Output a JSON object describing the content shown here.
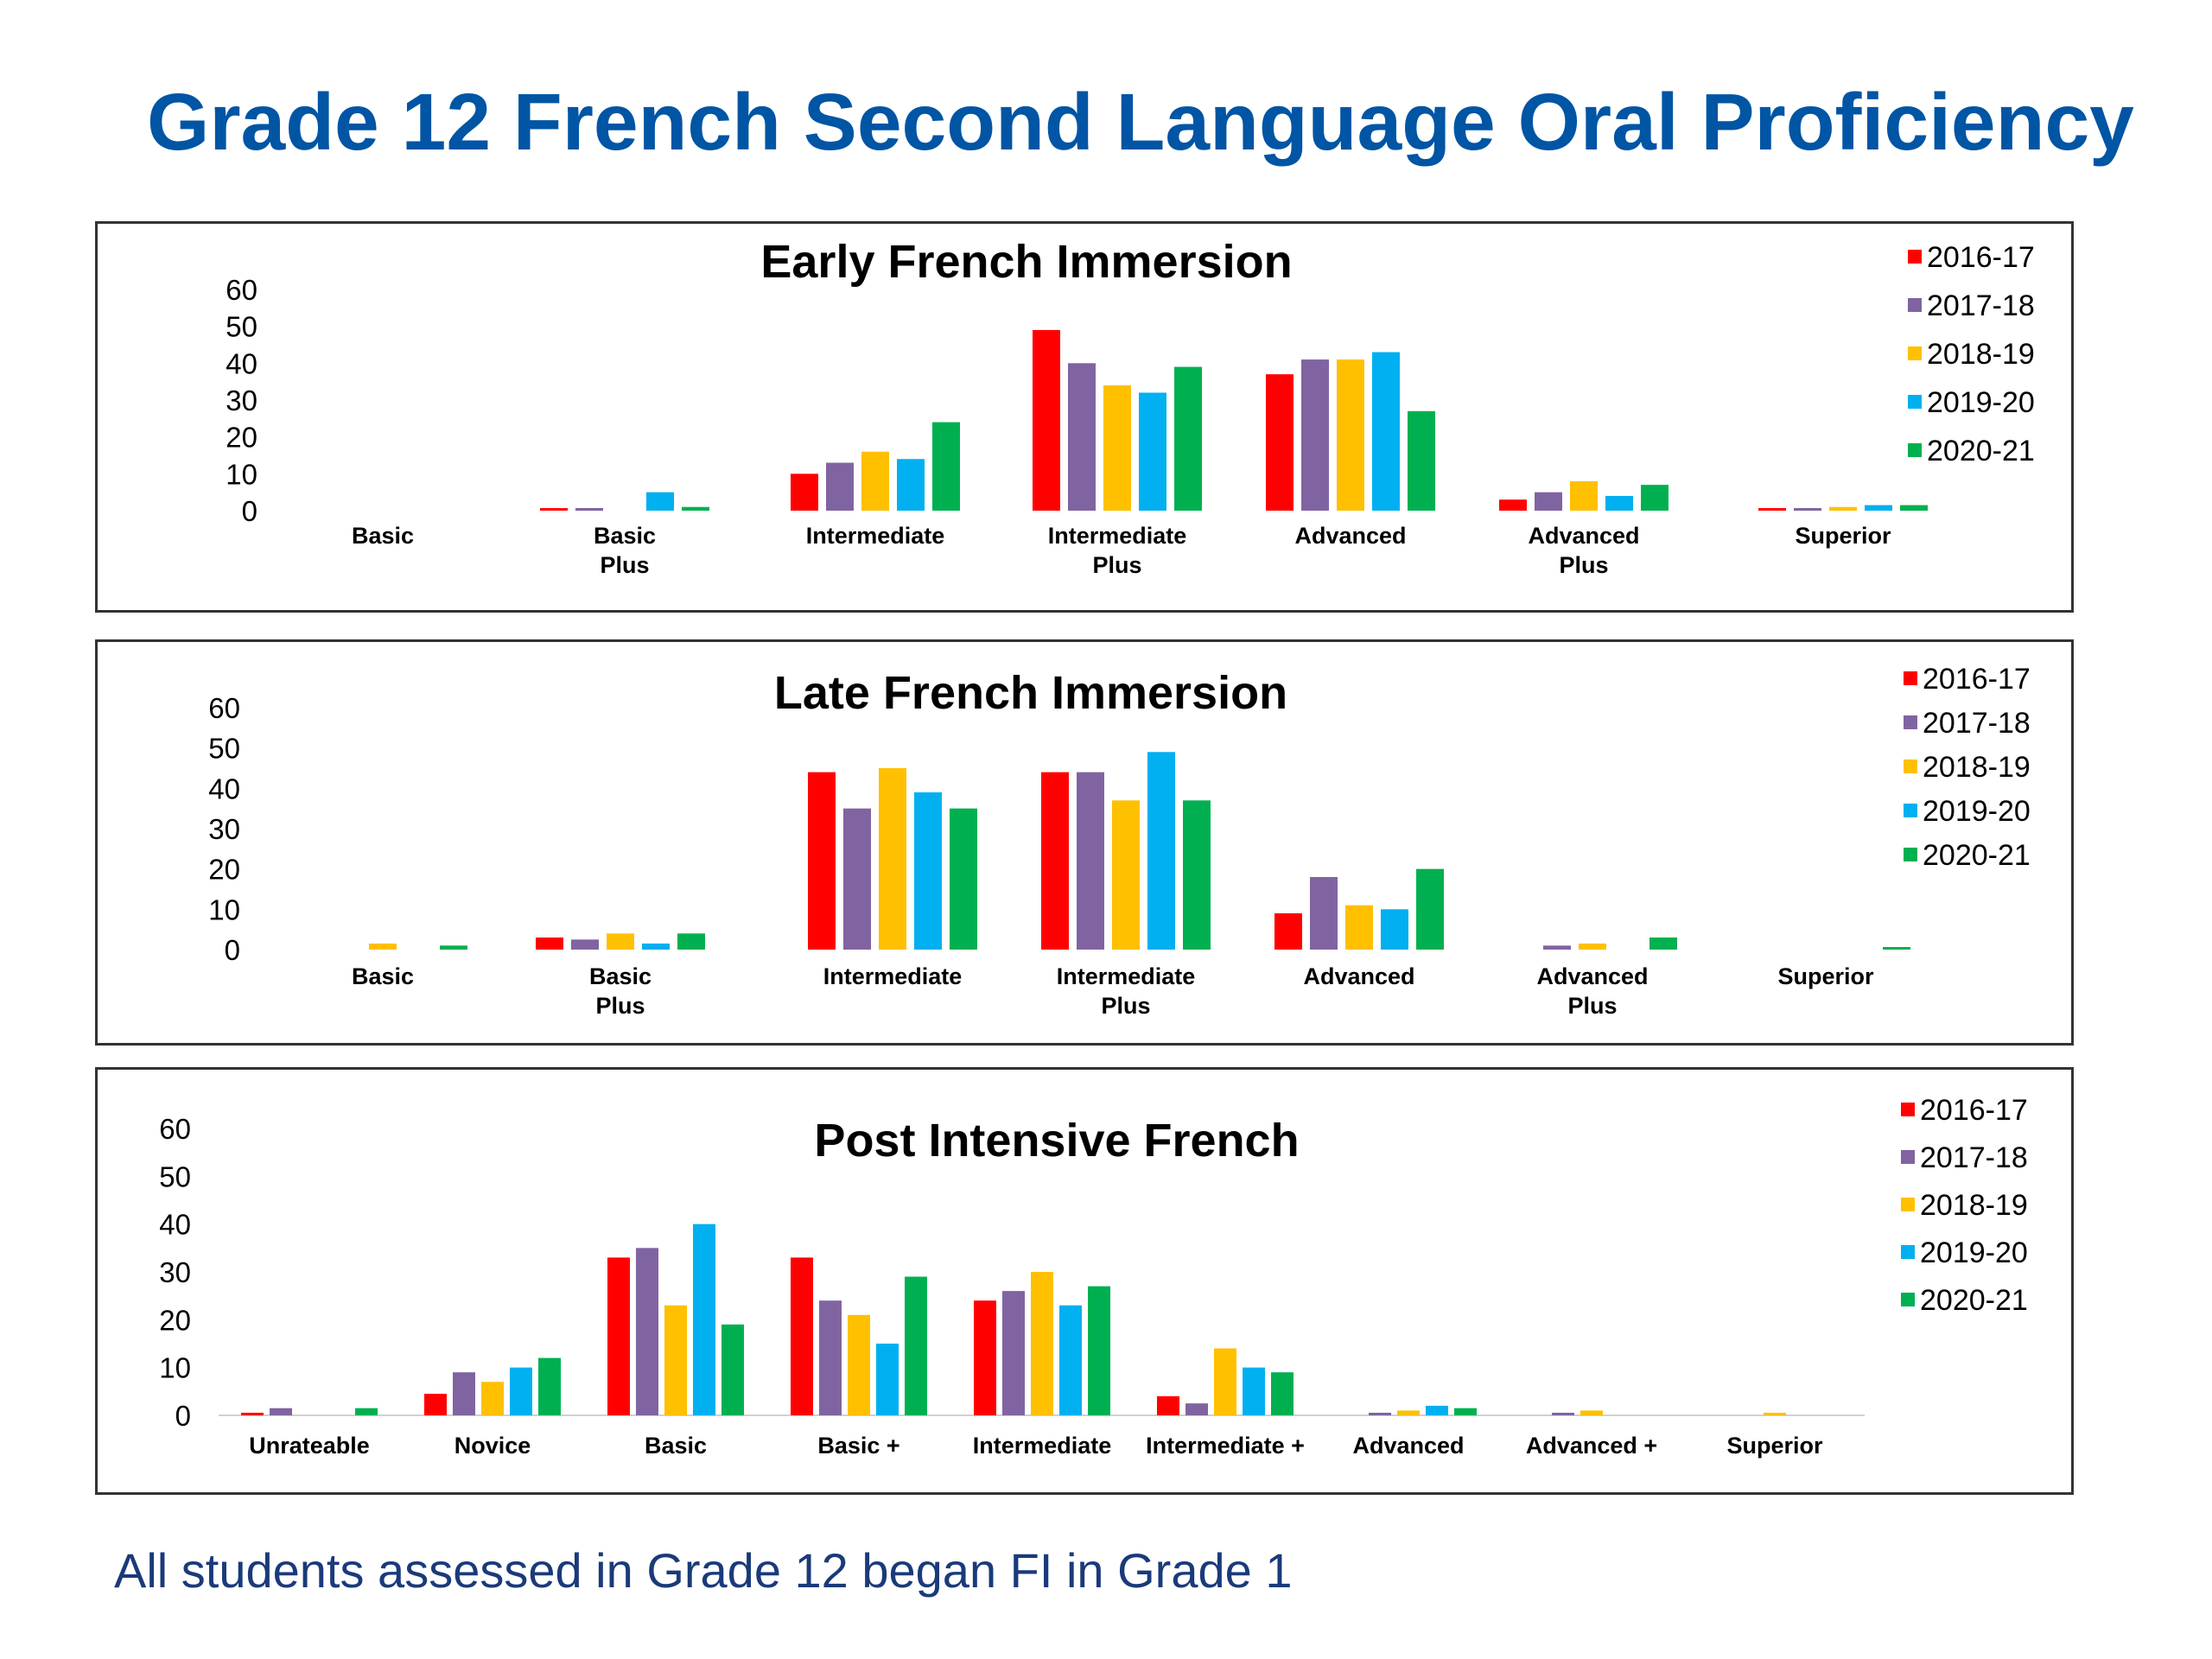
{
  "page": {
    "title": "Grade 12 French Second Language Oral Proficiency",
    "footnote": "All students assessed in Grade 12 began FI in Grade 1"
  },
  "colors": {
    "title": "#0055a4",
    "footnote": "#1a3a7a",
    "series": [
      "#ff0000",
      "#8064a2",
      "#ffc000",
      "#00b0f0",
      "#00b050"
    ]
  },
  "chart_data": [
    {
      "type": "bar",
      "title": "Early French Immersion",
      "xlabel": "",
      "ylabel": "",
      "ylim": [
        0,
        60
      ],
      "yticks": [
        "60",
        "50",
        "40",
        "30",
        "20",
        "10",
        "0"
      ],
      "grid": false,
      "legend_position": "top-right",
      "categories": [
        [
          "Basic"
        ],
        [
          "Basic",
          "Plus"
        ],
        [
          "Intermediate"
        ],
        [
          "Intermediate",
          "Plus"
        ],
        [
          "Advanced"
        ],
        [
          "Advanced",
          "Plus"
        ],
        [
          "Superior"
        ]
      ],
      "series": [
        {
          "name": "2016-17",
          "values": [
            0,
            0.3,
            10,
            49,
            37,
            3,
            0.3
          ]
        },
        {
          "name": "2017-18",
          "values": [
            0,
            0.3,
            13,
            40,
            41,
            5,
            0.3
          ]
        },
        {
          "name": "2018-19",
          "values": [
            0,
            0,
            16,
            34,
            41,
            8,
            1
          ]
        },
        {
          "name": "2019-20",
          "values": [
            0,
            5,
            14,
            32,
            43,
            4,
            1.5
          ]
        },
        {
          "name": "2020-21",
          "values": [
            0,
            1,
            24,
            39,
            27,
            7,
            1.5
          ]
        }
      ]
    },
    {
      "type": "bar",
      "title": "Late French Immersion",
      "xlabel": "",
      "ylabel": "",
      "ylim": [
        0,
        60
      ],
      "yticks": [
        "60",
        "50",
        "40",
        "30",
        "20",
        "10",
        "0"
      ],
      "grid": false,
      "legend_position": "top-right",
      "categories": [
        [
          "Basic"
        ],
        [
          "Basic",
          "Plus"
        ],
        [
          "Intermediate"
        ],
        [
          "Intermediate",
          "Plus"
        ],
        [
          "Advanced"
        ],
        [
          "Advanced",
          "Plus"
        ],
        [
          "Superior"
        ]
      ],
      "series": [
        {
          "name": "2016-17",
          "values": [
            0,
            3,
            44,
            44,
            9,
            0,
            0
          ]
        },
        {
          "name": "2017-18",
          "values": [
            0,
            2.5,
            35,
            44,
            18,
            1,
            0
          ]
        },
        {
          "name": "2018-19",
          "values": [
            1.5,
            4,
            45,
            37,
            11,
            1.5,
            0
          ]
        },
        {
          "name": "2019-20",
          "values": [
            0,
            1.5,
            39,
            49,
            10,
            0,
            0
          ]
        },
        {
          "name": "2020-21",
          "values": [
            1,
            4,
            35,
            37,
            20,
            3,
            0.5
          ]
        }
      ]
    },
    {
      "type": "bar",
      "title": "Post Intensive French",
      "xlabel": "",
      "ylabel": "",
      "ylim": [
        0,
        60
      ],
      "yticks": [
        "60",
        "50",
        "40",
        "30",
        "20",
        "10",
        "0"
      ],
      "grid": false,
      "legend_position": "top-right",
      "categories": [
        [
          "Unrateable"
        ],
        [
          "Novice"
        ],
        [
          "Basic"
        ],
        [
          "Basic +"
        ],
        [
          "Intermediate"
        ],
        [
          "Intermediate +"
        ],
        [
          "Advanced"
        ],
        [
          "Advanced +"
        ],
        [
          "Superior"
        ]
      ],
      "series": [
        {
          "name": "2016-17",
          "values": [
            0.5,
            4.5,
            33,
            33,
            24,
            4,
            0,
            0,
            0
          ]
        },
        {
          "name": "2017-18",
          "values": [
            1.5,
            9,
            35,
            24,
            26,
            2.5,
            0.5,
            0.5,
            0
          ]
        },
        {
          "name": "2018-19",
          "values": [
            0,
            7,
            23,
            21,
            30,
            14,
            1,
            1,
            0.5
          ]
        },
        {
          "name": "2019-20",
          "values": [
            0,
            10,
            40,
            15,
            23,
            10,
            2,
            0,
            0
          ]
        },
        {
          "name": "2020-21",
          "values": [
            1.5,
            12,
            19,
            29,
            27,
            9,
            1.5,
            0,
            0
          ]
        }
      ]
    }
  ]
}
